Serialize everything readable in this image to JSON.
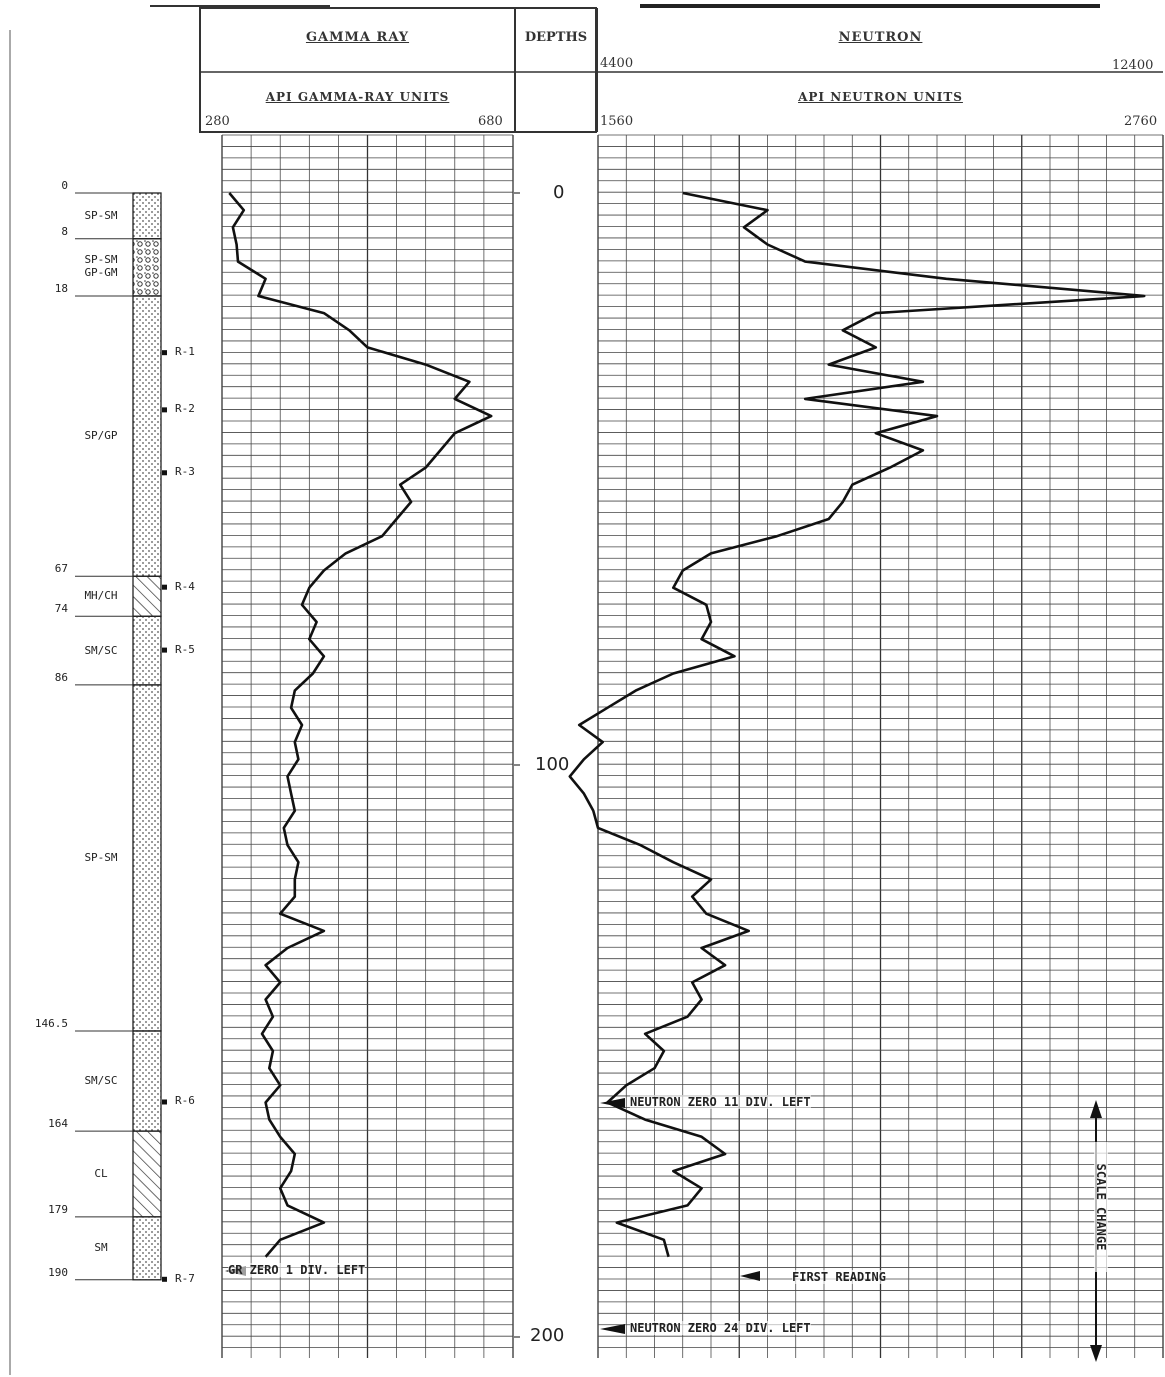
{
  "headers": {
    "gamma_title": "GAMMA RAY",
    "gamma_units": "API GAMMA-RAY UNITS",
    "gamma_min": "280",
    "gamma_max": "680",
    "depths_title": "DEPTHS",
    "neutron_title": "NEUTRON",
    "neutron_units": "API NEUTRON UNITS",
    "neutron_top_min": "4400",
    "neutron_top_max": "12400",
    "neutron_min": "1560",
    "neutron_max": "2760"
  },
  "depth_labels": [
    "0",
    "100",
    "200"
  ],
  "annotations": {
    "gr_zero": "GR ZERO 1 DIV. LEFT",
    "neutron_zero_1": "NEUTRON ZERO 11 DIV. LEFT",
    "first_reading": "FIRST READING",
    "neutron_zero_2": "NEUTRON ZERO 24 DIV. LEFT",
    "scale_change": "SCALE CHANGE"
  },
  "lithology": {
    "depths": [
      "0",
      "8",
      "18",
      "67",
      "74",
      "86",
      "146.5",
      "164",
      "179",
      "190"
    ],
    "units": [
      {
        "label": "SP-SM",
        "top": 0,
        "bottom": 8,
        "pattern": "dots"
      },
      {
        "label": "SP-SM\nGP-GM",
        "top": 8,
        "bottom": 18,
        "pattern": "gravel"
      },
      {
        "label": "SP/GP",
        "top": 18,
        "bottom": 67,
        "pattern": "dots"
      },
      {
        "label": "MH/CH",
        "top": 67,
        "bottom": 74,
        "pattern": "hatch"
      },
      {
        "label": "SM/SC",
        "top": 74,
        "bottom": 86,
        "pattern": "dots"
      },
      {
        "label": "SP-SM",
        "top": 86,
        "bottom": 146.5,
        "pattern": "dots"
      },
      {
        "label": "SM/SC",
        "top": 146.5,
        "bottom": 164,
        "pattern": "dots"
      },
      {
        "label": "CL",
        "top": 164,
        "bottom": 179,
        "pattern": "hatch"
      },
      {
        "label": "SM",
        "top": 179,
        "bottom": 190,
        "pattern": "dots"
      }
    ],
    "samples": [
      {
        "label": "R-1",
        "depth": 28
      },
      {
        "label": "R-2",
        "depth": 38
      },
      {
        "label": "R-3",
        "depth": 49
      },
      {
        "label": "R-4",
        "depth": 69
      },
      {
        "label": "R-5",
        "depth": 80
      },
      {
        "label": "R-6",
        "depth": 159
      },
      {
        "label": "R-7",
        "depth": 190
      }
    ]
  },
  "chart_data": {
    "type": "line",
    "ylabel": "DEPTHS",
    "ylim": [
      0,
      200
    ],
    "y_ticks": [
      0,
      100,
      200
    ],
    "series": [
      {
        "name": "GAMMA RAY",
        "xlim": [
          280,
          680
        ],
        "depth": [
          0,
          3,
          6,
          9,
          12,
          15,
          18,
          21,
          24,
          27,
          30,
          33,
          36,
          39,
          42,
          45,
          48,
          51,
          54,
          57,
          60,
          63,
          66,
          69,
          72,
          75,
          78,
          81,
          84,
          87,
          90,
          93,
          96,
          99,
          102,
          105,
          108,
          111,
          114,
          117,
          120,
          123,
          126,
          129,
          132,
          135,
          138,
          141,
          144,
          147,
          150,
          153,
          156,
          159,
          162,
          165,
          168,
          171,
          174,
          177,
          180,
          183,
          186
        ],
        "values": [
          290,
          310,
          295,
          300,
          302,
          340,
          330,
          420,
          455,
          480,
          560,
          620,
          600,
          650,
          600,
          580,
          560,
          525,
          540,
          520,
          500,
          450,
          420,
          400,
          390,
          410,
          400,
          420,
          405,
          380,
          375,
          390,
          380,
          385,
          370,
          375,
          380,
          365,
          370,
          385,
          380,
          380,
          360,
          420,
          370,
          340,
          360,
          340,
          350,
          335,
          350,
          345,
          360,
          340,
          345,
          360,
          380,
          375,
          360,
          370,
          420,
          360,
          340
        ]
      },
      {
        "name": "NEUTRON",
        "xlim": [
          1560,
          2760
        ],
        "depth": [
          0,
          3,
          6,
          9,
          12,
          15,
          18,
          21,
          24,
          27,
          30,
          33,
          36,
          39,
          42,
          45,
          48,
          51,
          54,
          57,
          60,
          63,
          66,
          69,
          72,
          75,
          78,
          81,
          84,
          87,
          90,
          93,
          96,
          99,
          102,
          105,
          108,
          111,
          114,
          117,
          120,
          123,
          126,
          129,
          132,
          135,
          138,
          141,
          144,
          147,
          150,
          153,
          156,
          159,
          162,
          165,
          168,
          171,
          174,
          177,
          180,
          183,
          186
        ],
        "values": [
          1740,
          1920,
          1870,
          1920,
          2000,
          2300,
          2720,
          2150,
          2080,
          2150,
          2050,
          2250,
          2000,
          2280,
          2150,
          2250,
          2180,
          2100,
          2080,
          2050,
          1940,
          1800,
          1740,
          1720,
          1790,
          1800,
          1780,
          1850,
          1720,
          1640,
          1580,
          1520,
          1570,
          1530,
          1500,
          1530,
          1550,
          1560,
          1650,
          1720,
          1800,
          1760,
          1790,
          1880,
          1780,
          1830,
          1760,
          1780,
          1750,
          1660,
          1700,
          1680,
          1620,
          1580,
          1660,
          1780,
          1830,
          1720,
          1780,
          1750,
          1600,
          1700,
          1710
        ]
      }
    ]
  }
}
